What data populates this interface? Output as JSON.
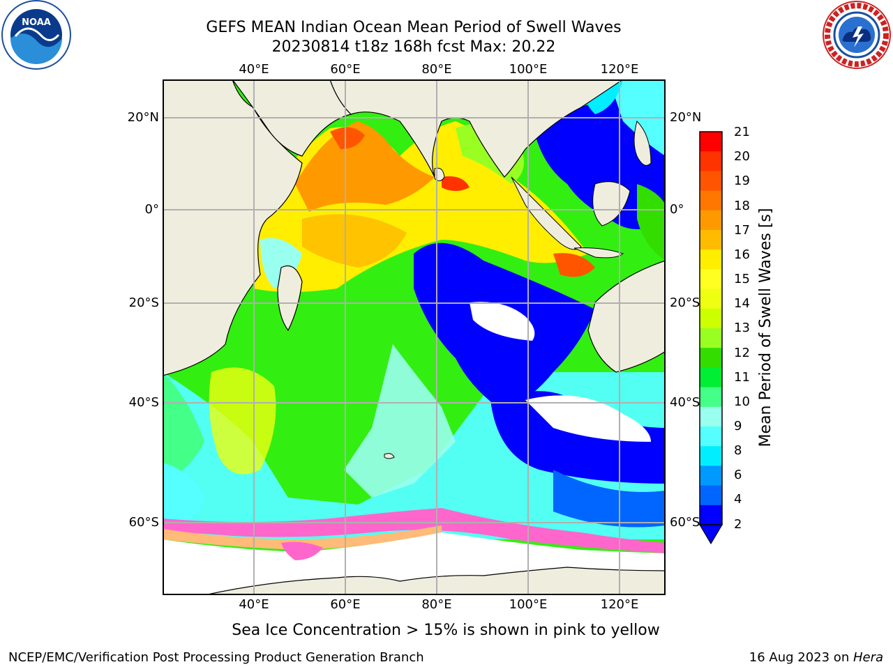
{
  "header": {
    "title": "GEFS MEAN Indian Ocean Mean Period of Swell Waves",
    "subtitle": "20230814 t18z 168h fcst   Max: 20.22"
  },
  "logos": {
    "left": {
      "icon": "noaa-logo",
      "text": "NOAA"
    },
    "right": {
      "icon": "nws-logo"
    }
  },
  "map": {
    "lon_labels": [
      "40°E",
      "60°E",
      "80°E",
      "100°E",
      "120°E"
    ],
    "lat_labels": [
      "20°N",
      "0°",
      "20°S",
      "40°S",
      "60°S"
    ],
    "colors": {
      "land": "#efedde",
      "sea_ice": "#ff66cc",
      "grid": "#b0b0b0"
    }
  },
  "colorbar": {
    "label": "Mean Period of Swell Waves [s]",
    "ticks": [
      "21",
      "20",
      "19",
      "18",
      "17",
      "16",
      "15",
      "14",
      "13",
      "12",
      "11",
      "10",
      "9",
      "8",
      "6",
      "4",
      "2"
    ],
    "colors": [
      "#ff0000",
      "#ff3300",
      "#ff5500",
      "#ff7700",
      "#ff9900",
      "#ffbb00",
      "#ffee00",
      "#ffff22",
      "#eeff11",
      "#ccff00",
      "#99ff22",
      "#33dd00",
      "#00ee33",
      "#44ff88",
      "#99ffee",
      "#55ffff",
      "#00eeff",
      "#0099ff",
      "#0066ff",
      "#0000ff"
    ]
  },
  "footer": {
    "note": "Sea Ice Concentration > 15% is shown in pink to yellow",
    "left": "NCEP/EMC/Verification Post Processing Product Generation Branch",
    "right_date": "16 Aug 2023 on ",
    "right_host": "Hera"
  }
}
